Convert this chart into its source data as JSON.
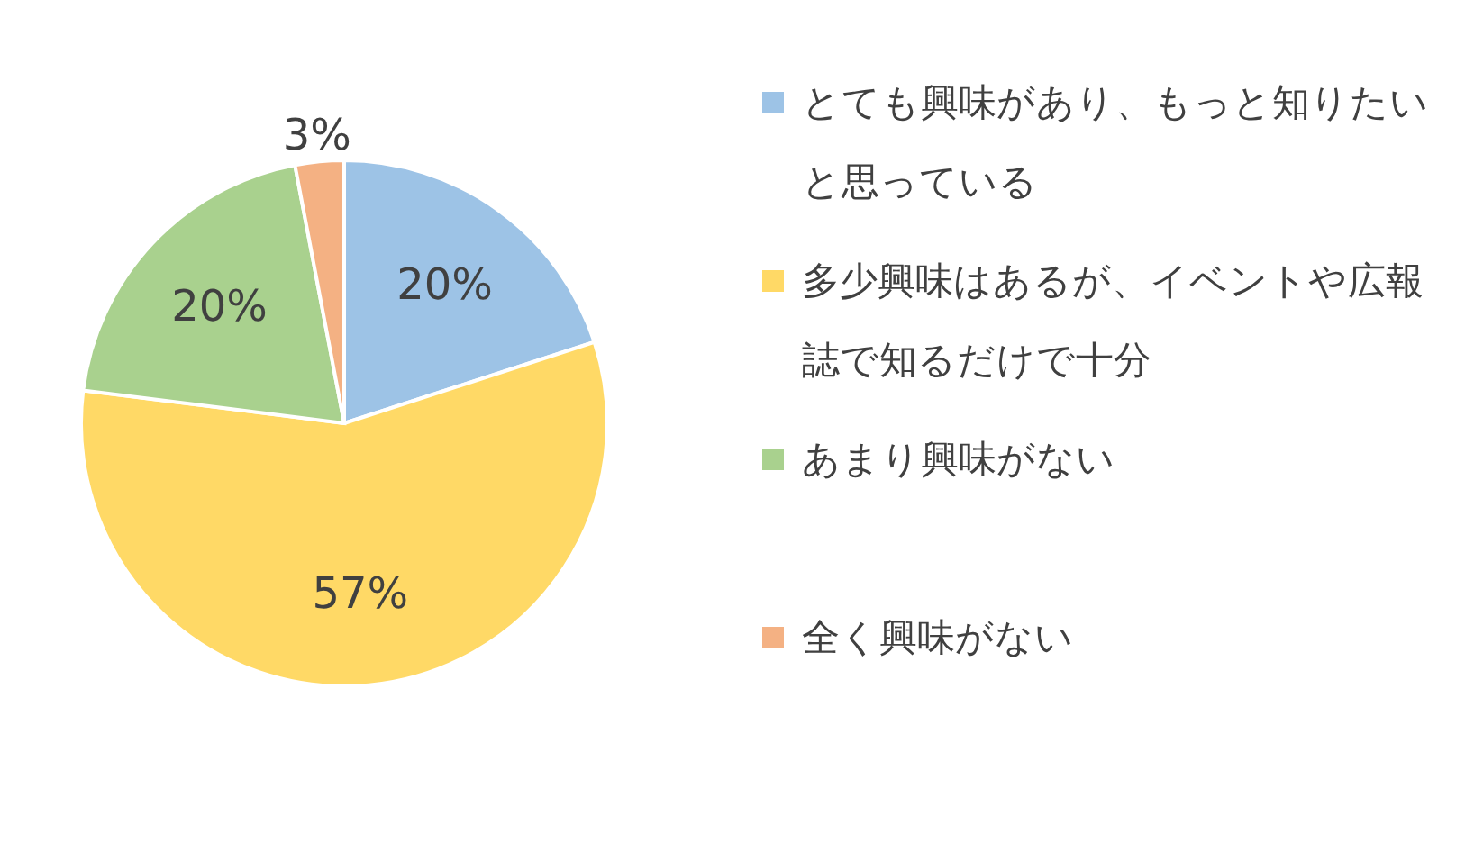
{
  "chart_data": {
    "type": "pie",
    "categories": [
      "とても興味があり、もっと知りたいと思っている",
      "多少興味はあるが、イベントや広報誌で知るだけで十分",
      "あまり興味がない",
      "全く興味がない"
    ],
    "values": [
      20,
      57,
      20,
      3
    ],
    "colors": [
      "#9dc3e6",
      "#ffd966",
      "#a9d18e",
      "#f4b183"
    ],
    "value_labels": [
      "20%",
      "57%",
      "20%",
      "3%"
    ],
    "legend": "right"
  }
}
